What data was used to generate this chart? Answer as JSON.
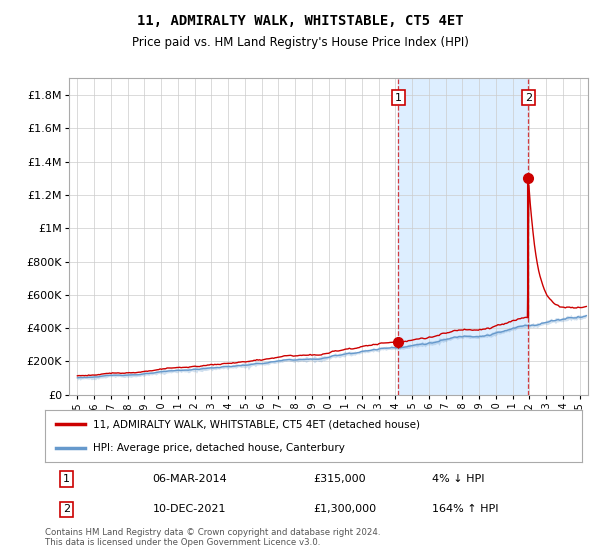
{
  "title": "11, ADMIRALTY WALK, WHITSTABLE, CT5 4ET",
  "subtitle": "Price paid vs. HM Land Registry's House Price Index (HPI)",
  "xlim_start": 1994.5,
  "xlim_end": 2025.5,
  "ylim": [
    0,
    1900000
  ],
  "yticks": [
    0,
    200000,
    400000,
    600000,
    800000,
    1000000,
    1200000,
    1400000,
    1600000,
    1800000
  ],
  "ytick_labels": [
    "£0",
    "£200K",
    "£400K",
    "£600K",
    "£800K",
    "£1M",
    "£1.2M",
    "£1.4M",
    "£1.6M",
    "£1.8M"
  ],
  "sale1_year": 2014.17,
  "sale1_price": 315000,
  "sale1_label": "06-MAR-2014",
  "sale1_price_label": "£315,000",
  "sale1_hpi_label": "4% ↓ HPI",
  "sale2_year": 2021.94,
  "sale2_price": 1300000,
  "sale2_label": "10-DEC-2021",
  "sale2_price_label": "£1,300,000",
  "sale2_hpi_label": "164% ↑ HPI",
  "red_line_color": "#cc0000",
  "blue_line_color": "#6699cc",
  "highlight_color": "#ddeeff",
  "grid_color": "#cccccc",
  "background_color": "#ffffff",
  "legend1_text": "11, ADMIRALTY WALK, WHITSTABLE, CT5 4ET (detached house)",
  "legend2_text": "HPI: Average price, detached house, Canterbury",
  "footer_text": "Contains HM Land Registry data © Crown copyright and database right 2024.\nThis data is licensed under the Open Government Licence v3.0.",
  "xtick_years": [
    1995,
    1996,
    1997,
    1998,
    1999,
    2000,
    2001,
    2002,
    2003,
    2004,
    2005,
    2006,
    2007,
    2008,
    2009,
    2010,
    2011,
    2012,
    2013,
    2014,
    2015,
    2016,
    2017,
    2018,
    2019,
    2020,
    2021,
    2022,
    2023,
    2024,
    2025
  ]
}
